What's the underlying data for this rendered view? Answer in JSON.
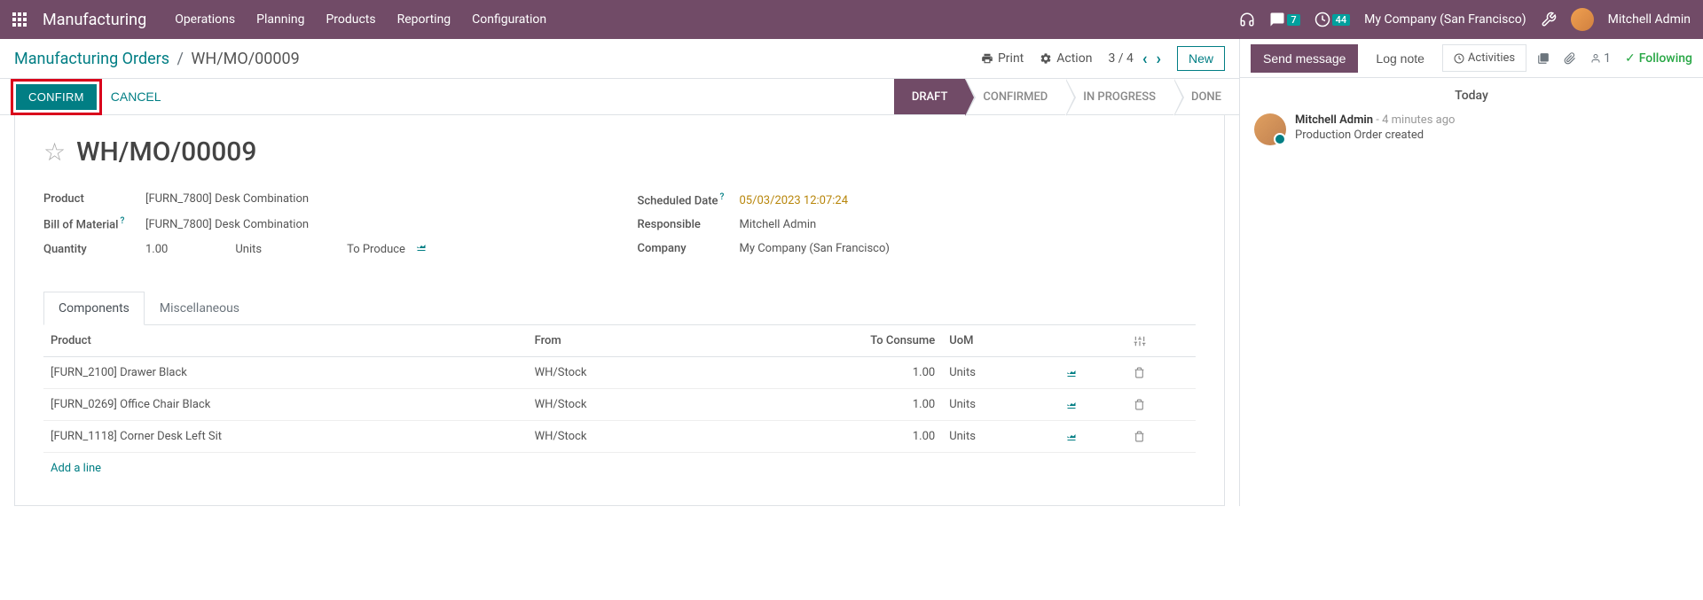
{
  "topbar": {
    "app_title": "Manufacturing",
    "menu": [
      "Operations",
      "Planning",
      "Products",
      "Reporting",
      "Configuration"
    ],
    "messages_badge": "7",
    "activities_badge": "44",
    "company": "My Company (San Francisco)",
    "user": "Mitchell Admin"
  },
  "breadcrumb": {
    "root": "Manufacturing Orders",
    "current": "WH/MO/00009",
    "print": "Print",
    "action": "Action",
    "pager": "3 / 4",
    "new": "New"
  },
  "statusbar": {
    "confirm": "CONFIRM",
    "cancel": "CANCEL",
    "steps": [
      "DRAFT",
      "CONFIRMED",
      "IN PROGRESS",
      "DONE"
    ]
  },
  "record": {
    "title": "WH/MO/00009",
    "product_label": "Product",
    "product": "[FURN_7800] Desk Combination",
    "bom_label": "Bill of Material",
    "bom": "[FURN_7800] Desk Combination",
    "qty_label": "Quantity",
    "qty": "1.00",
    "qty_uom": "Units",
    "to_produce": "To Produce",
    "scheduled_label": "Scheduled Date",
    "scheduled": "05/03/2023 12:07:24",
    "responsible_label": "Responsible",
    "responsible": "Mitchell Admin",
    "company_label": "Company",
    "company": "My Company (San Francisco)"
  },
  "tabs": {
    "components": "Components",
    "misc": "Miscellaneous"
  },
  "table": {
    "h_product": "Product",
    "h_from": "From",
    "h_consume": "To Consume",
    "h_uom": "UoM",
    "rows": [
      {
        "product": "[FURN_2100] Drawer Black",
        "from": "WH/Stock",
        "consume": "1.00",
        "uom": "Units"
      },
      {
        "product": "[FURN_0269] Office Chair Black",
        "from": "WH/Stock",
        "consume": "1.00",
        "uom": "Units"
      },
      {
        "product": "[FURN_1118] Corner Desk Left Sit",
        "from": "WH/Stock",
        "consume": "1.00",
        "uom": "Units"
      }
    ],
    "add_line": "Add a line"
  },
  "chatter": {
    "send": "Send message",
    "log": "Log note",
    "activities": "Activities",
    "followers": "1",
    "following": "Following",
    "today": "Today",
    "msg_author": "Mitchell Admin",
    "msg_time": "- 4 minutes ago",
    "msg_text": "Production Order created"
  }
}
